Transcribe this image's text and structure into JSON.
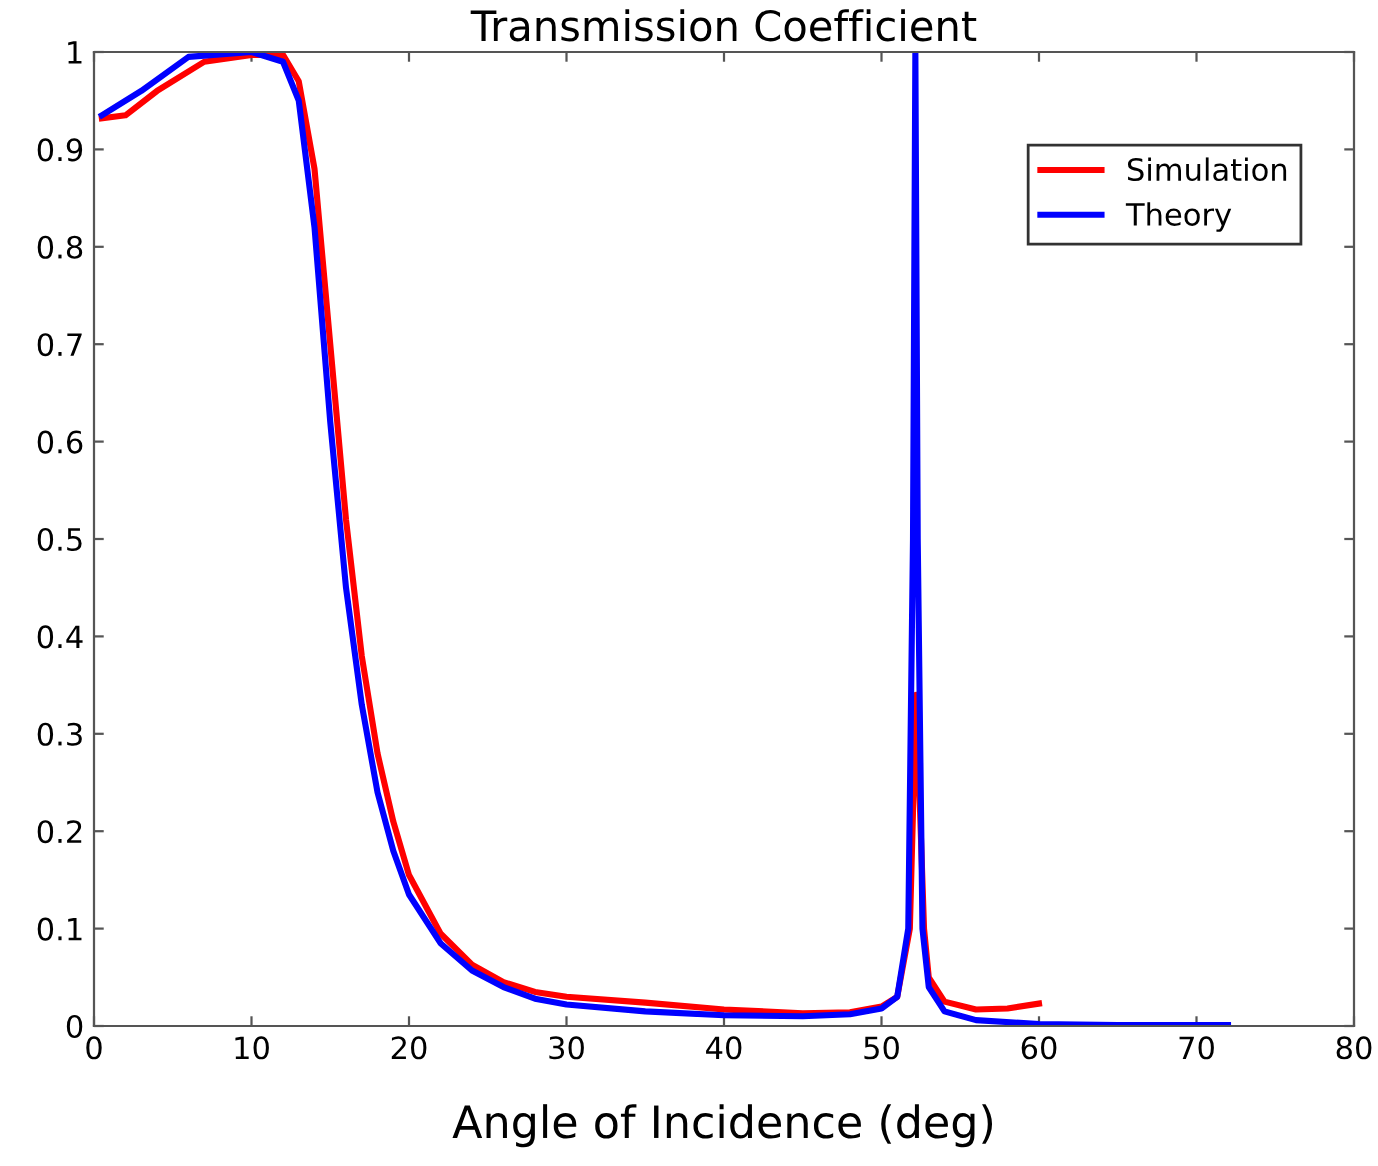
{
  "chart_data": {
    "type": "line",
    "title": "Transmission Coefficient",
    "xlabel": "Angle of Incidence (deg)",
    "xlim": [
      0,
      80
    ],
    "xticks": [
      0,
      10,
      20,
      30,
      40,
      50,
      60,
      70,
      80
    ],
    "ylim": [
      0,
      1
    ],
    "yticks": [
      0,
      0.1,
      0.2,
      0.3,
      0.4,
      0.5,
      0.6,
      0.7,
      0.8,
      0.9,
      1
    ],
    "grid": false,
    "legend": "top right",
    "marker": "none",
    "line_style": "solid",
    "series": [
      {
        "name": "Simulation",
        "color": "#ff0000",
        "x": [
          0.5,
          2,
          4,
          7,
          10,
          12,
          13,
          14,
          15,
          16,
          17,
          18,
          19,
          20,
          22,
          24,
          26,
          28,
          30,
          35,
          40,
          45,
          48,
          50,
          51,
          51.8,
          52.2,
          52.7,
          53,
          54,
          56,
          58,
          60
        ],
        "values": [
          0.932,
          0.935,
          0.96,
          0.99,
          0.997,
          0.997,
          0.97,
          0.88,
          0.7,
          0.52,
          0.38,
          0.28,
          0.21,
          0.155,
          0.095,
          0.063,
          0.045,
          0.035,
          0.03,
          0.024,
          0.017,
          0.013,
          0.014,
          0.02,
          0.03,
          0.1,
          0.34,
          0.1,
          0.05,
          0.025,
          0.017,
          0.018,
          0.023
        ]
      },
      {
        "name": "Theory",
        "color": "#0000ff",
        "x": [
          0.5,
          3,
          6,
          10,
          12,
          13,
          14,
          15,
          16,
          17,
          18,
          19,
          20,
          22,
          24,
          26,
          28,
          30,
          35,
          40,
          45,
          48,
          50,
          51,
          51.7,
          52,
          52.15,
          52.3,
          52.6,
          53,
          54,
          56,
          60,
          65,
          72
        ],
        "values": [
          0.935,
          0.96,
          0.995,
          1.0,
          0.99,
          0.95,
          0.82,
          0.62,
          0.45,
          0.33,
          0.24,
          0.18,
          0.135,
          0.085,
          0.057,
          0.04,
          0.028,
          0.022,
          0.015,
          0.011,
          0.01,
          0.012,
          0.018,
          0.03,
          0.1,
          0.5,
          1.0,
          0.5,
          0.1,
          0.04,
          0.015,
          0.006,
          0.002,
          0.001,
          0.001
        ]
      }
    ]
  }
}
